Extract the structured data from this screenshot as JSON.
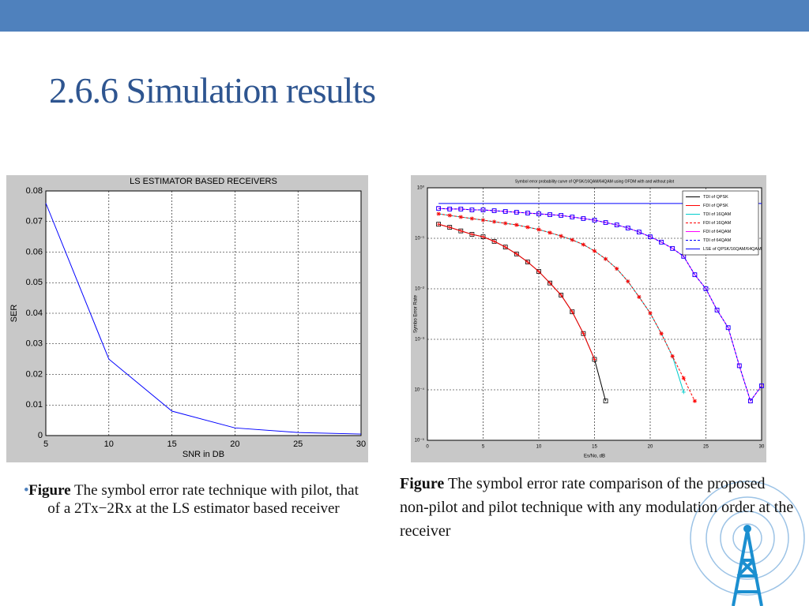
{
  "header": {
    "title": "2.6.6 Simulation results"
  },
  "chart_data": [
    {
      "type": "line",
      "title": "LS ESTIMATOR BASED RECEIVERS",
      "x_label": "SNR in DB",
      "y_label": "SER",
      "x": [
        5,
        10,
        15,
        20,
        25,
        30
      ],
      "series": [
        {
          "color": "#0000ff",
          "values": [
            0.076,
            0.025,
            0.008,
            0.0025,
            0.001,
            0.0005
          ]
        }
      ],
      "xlim": [
        5,
        30
      ],
      "xticks": [
        5,
        10,
        15,
        20,
        25,
        30
      ],
      "ylim": [
        0,
        0.08
      ],
      "yticks": [
        0,
        0.01,
        0.02,
        0.03,
        0.04,
        0.05,
        0.06,
        0.07,
        0.08
      ],
      "grid": true
    },
    {
      "type": "line",
      "title": "Symbol error probability curve of QPSK/16QAM/64QAM using OFDM with and without pilot",
      "x_label": "Es/No, dB",
      "y_label": "Symbo Error Rate",
      "log_y": true,
      "legend": "upper right",
      "grid": true,
      "x": [
        1,
        2,
        3,
        4,
        5,
        6,
        7,
        8,
        9,
        10,
        11,
        12,
        13,
        14,
        15,
        16,
        17,
        18,
        19,
        20,
        21,
        22,
        23,
        24,
        25,
        26,
        27,
        28,
        29,
        30
      ],
      "series": [
        {
          "name": "TDI of QPSK",
          "color": "#000000",
          "marker": "square",
          "values": [
            0.19,
            0.165,
            0.14,
            0.12,
            0.107,
            0.087,
            0.067,
            0.049,
            0.034,
            0.022,
            0.013,
            0.0075,
            0.0035,
            0.0013,
            0.0004,
            6e-05,
            null,
            null,
            null,
            null,
            null,
            null,
            null,
            null,
            null,
            null,
            null,
            null,
            null,
            null
          ]
        },
        {
          "name": "FDI of QPSK",
          "color": "#ff0000",
          "marker": "plus",
          "values": [
            0.19,
            0.165,
            0.14,
            0.12,
            0.107,
            0.087,
            0.067,
            0.049,
            0.034,
            0.022,
            0.013,
            0.0075,
            0.0035,
            0.0013,
            0.0004,
            null,
            null,
            null,
            null,
            null,
            null,
            null,
            null,
            null,
            null,
            null,
            null,
            null,
            null,
            null
          ]
        },
        {
          "name": "TDI of 16QAM",
          "color": "#00cccc",
          "marker": "plus",
          "values": [
            0.305,
            0.284,
            0.264,
            0.246,
            0.229,
            0.213,
            0.198,
            0.184,
            0.166,
            0.149,
            0.129,
            0.111,
            0.093,
            0.075,
            0.056,
            0.039,
            0.025,
            0.014,
            0.0069,
            0.0033,
            0.0013,
            0.00046,
            9e-05,
            null,
            null,
            null,
            null,
            null,
            null,
            null
          ]
        },
        {
          "name": "FDI of 16QAM",
          "color": "#ff0000",
          "marker": "star",
          "dash": true,
          "values": [
            0.305,
            0.284,
            0.264,
            0.246,
            0.229,
            0.213,
            0.198,
            0.184,
            0.166,
            0.149,
            0.129,
            0.111,
            0.093,
            0.075,
            0.056,
            0.039,
            0.025,
            0.014,
            0.0069,
            0.0033,
            0.0013,
            0.00046,
            0.00017,
            6e-05,
            null,
            null,
            null,
            null,
            null,
            null
          ]
        },
        {
          "name": "FDI of 64QAM",
          "color": "#ff00ff",
          "marker": "circle",
          "values": [
            0.39,
            0.38,
            0.38,
            0.365,
            0.365,
            0.352,
            0.34,
            0.328,
            0.316,
            0.305,
            0.294,
            0.284,
            0.264,
            0.246,
            0.229,
            0.205,
            0.184,
            0.16,
            0.133,
            0.107,
            0.084,
            0.063,
            0.044,
            0.019,
            0.01,
            0.0038,
            0.0017,
            0.0003,
            6e-05,
            0.00012
          ]
        },
        {
          "name": "TDI of 64QAM",
          "color": "#0000ff",
          "marker": "square",
          "dash": true,
          "values": [
            0.39,
            0.38,
            0.38,
            0.365,
            0.365,
            0.352,
            0.34,
            0.328,
            0.316,
            0.305,
            0.294,
            0.284,
            0.264,
            0.246,
            0.229,
            0.205,
            0.184,
            0.16,
            0.133,
            0.107,
            0.084,
            0.063,
            0.044,
            0.019,
            0.01,
            0.0038,
            0.0017,
            0.0003,
            6e-05,
            0.00012
          ]
        },
        {
          "name": "LSE of QPSK/16QAM/64QAM",
          "color": "#0000ff",
          "values": [
            0.49,
            0.49,
            0.49,
            0.49,
            0.49,
            0.49,
            0.49,
            0.49,
            0.49,
            0.49,
            0.49,
            0.49,
            0.49,
            0.49,
            0.49,
            0.49,
            0.49,
            0.49,
            0.49,
            0.49,
            0.49,
            0.49,
            0.49,
            0.49,
            0.49,
            0.49,
            0.49,
            0.49,
            0.49,
            0.49
          ]
        }
      ],
      "xlim": [
        0,
        30
      ],
      "xticks": [
        0,
        5,
        10,
        15,
        20,
        25,
        30
      ],
      "ylim": [
        1e-05,
        1
      ],
      "yticks": [
        {
          "value": 1e-05,
          "label": "10⁻⁵"
        },
        {
          "value": 0.0001,
          "label": "10⁻⁴"
        },
        {
          "value": 0.001,
          "label": "10⁻³"
        },
        {
          "value": 0.01,
          "label": "10⁻²"
        },
        {
          "value": 0.1,
          "label": "10⁻¹"
        },
        {
          "value": 1,
          "label": "10⁰"
        }
      ]
    }
  ],
  "captions": [
    {
      "label": "Figure",
      "text": "The symbol error rate technique with pilot, that of a 2Tx−2Rx at the LS estimator based receiver"
    },
    {
      "label": "Figure",
      "text": "The symbol error rate comparison of the proposed non-pilot and pilot technique with any modulation order at the receiver"
    }
  ]
}
